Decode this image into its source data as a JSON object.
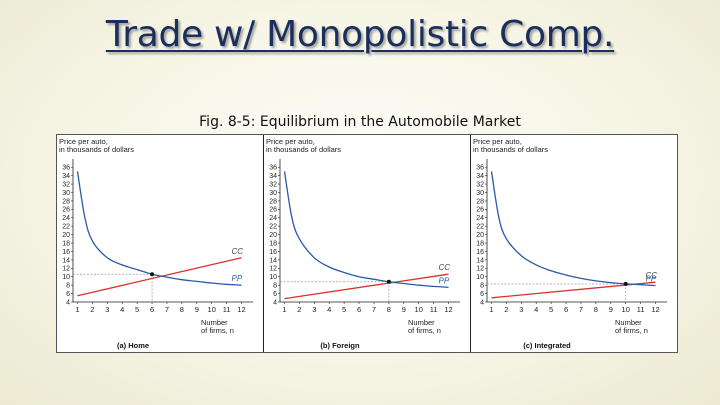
{
  "slide": {
    "title": "Trade w/ Monopolistic Comp.",
    "caption": "Fig. 8-5: Equilibrium in the Automobile Market"
  },
  "colors": {
    "cc_line": "#d9302c",
    "pp_line": "#2b5aa6",
    "guide": "#888888",
    "cc_label": "#444444",
    "pp_label": "#2b5aa6"
  },
  "chart_data": [
    {
      "type": "line",
      "panel_label": "(a) Home",
      "ylabel": [
        "Price per auto,",
        "in thousands of dollars"
      ],
      "xlabel": [
        "Number",
        "of firms, n"
      ],
      "x_ticks": [
        1,
        2,
        3,
        4,
        5,
        6,
        7,
        8,
        9,
        10,
        11,
        12
      ],
      "y_ticks": [
        4,
        6,
        8,
        10,
        12,
        14,
        16,
        18,
        20,
        22,
        24,
        26,
        28,
        30,
        32,
        34,
        36
      ],
      "xlim": [
        0.7,
        12.5
      ],
      "ylim": [
        4,
        37
      ],
      "series": [
        {
          "name": "CC",
          "kind": "line",
          "points": [
            [
              1,
              5.5
            ],
            [
              12,
              14.5
            ]
          ]
        },
        {
          "name": "PP",
          "kind": "curve",
          "points": [
            [
              1,
              35
            ],
            [
              1.5,
              24
            ],
            [
              2,
              18.5
            ],
            [
              3,
              14.5
            ],
            [
              4,
              12.8
            ],
            [
              5,
              11.7
            ],
            [
              6,
              10.6
            ],
            [
              7,
              9.9
            ],
            [
              8,
              9.3
            ],
            [
              9,
              8.9
            ],
            [
              10,
              8.5
            ],
            [
              11,
              8.2
            ],
            [
              12,
              8.0
            ]
          ]
        }
      ],
      "equilibrium": {
        "x": 6,
        "y": 10.6
      }
    },
    {
      "type": "line",
      "panel_label": "(b) Foreign",
      "ylabel": [
        "Price per auto,",
        "in thousands of dollars"
      ],
      "xlabel": [
        "Number",
        "of firms, n"
      ],
      "x_ticks": [
        1,
        2,
        3,
        4,
        5,
        6,
        7,
        8,
        9,
        10,
        11,
        12
      ],
      "y_ticks": [
        4,
        6,
        8,
        10,
        12,
        14,
        16,
        18,
        20,
        22,
        24,
        26,
        28,
        30,
        32,
        34,
        36
      ],
      "xlim": [
        0.7,
        12.5
      ],
      "ylim": [
        4,
        37
      ],
      "series": [
        {
          "name": "CC",
          "kind": "line",
          "points": [
            [
              1,
              4.8
            ],
            [
              12,
              10.6
            ]
          ]
        },
        {
          "name": "PP",
          "kind": "curve",
          "points": [
            [
              1,
              35
            ],
            [
              1.5,
              24
            ],
            [
              2,
              19
            ],
            [
              3,
              14.5
            ],
            [
              4,
              12.3
            ],
            [
              5,
              11
            ],
            [
              6,
              10
            ],
            [
              7,
              9.4
            ],
            [
              8,
              8.8
            ],
            [
              9,
              8.4
            ],
            [
              10,
              8
            ],
            [
              11,
              7.7
            ],
            [
              12,
              7.5
            ]
          ]
        }
      ],
      "equilibrium": {
        "x": 8,
        "y": 8.8
      }
    },
    {
      "type": "line",
      "panel_label": "(c) Integrated",
      "ylabel": [
        "Price per auto,",
        "in thousands of dollars"
      ],
      "xlabel": [
        "Number",
        "of firms, n"
      ],
      "x_ticks": [
        1,
        2,
        3,
        4,
        5,
        6,
        7,
        8,
        9,
        10,
        11,
        12
      ],
      "y_ticks": [
        4,
        6,
        8,
        10,
        12,
        14,
        16,
        18,
        20,
        22,
        24,
        26,
        28,
        30,
        32,
        34,
        36
      ],
      "xlim": [
        0.7,
        12.5
      ],
      "ylim": [
        4,
        37
      ],
      "series": [
        {
          "name": "CC",
          "kind": "line",
          "points": [
            [
              1,
              5
            ],
            [
              12,
              8.7
            ]
          ]
        },
        {
          "name": "PP",
          "kind": "curve",
          "points": [
            [
              1,
              35
            ],
            [
              1.5,
              24
            ],
            [
              2,
              19
            ],
            [
              3,
              15
            ],
            [
              4,
              12.8
            ],
            [
              5,
              11.4
            ],
            [
              6,
              10.4
            ],
            [
              7,
              9.6
            ],
            [
              8,
              9
            ],
            [
              9,
              8.6
            ],
            [
              10,
              8.3
            ],
            [
              11,
              8.1
            ],
            [
              12,
              7.9
            ]
          ]
        }
      ],
      "equilibrium": {
        "x": 10,
        "y": 8.3
      }
    }
  ]
}
